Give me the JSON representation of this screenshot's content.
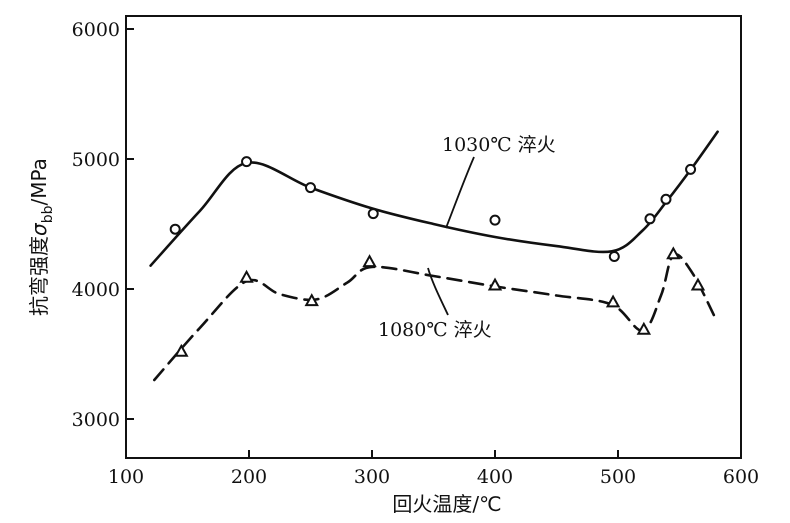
{
  "chart_data": {
    "type": "line",
    "xlabel": "回火温度/℃",
    "ylabel_main": "抗弯强度",
    "ylabel_symbol": "σ",
    "ylabel_sub": "bb",
    "ylabel_unit": "/MPa",
    "xlim": [
      100,
      600
    ],
    "ylim": [
      2700,
      6100
    ],
    "x_ticks": [
      "100",
      "200",
      "300",
      "400",
      "500",
      "600"
    ],
    "y_ticks": [
      "3000",
      "4000",
      "5000",
      "6000"
    ],
    "series": [
      {
        "name": "1030℃ 淬火",
        "line_style": "solid",
        "marker": "circle",
        "points": [
          {
            "x": 140,
            "y": 4460
          },
          {
            "x": 198,
            "y": 4980
          },
          {
            "x": 250,
            "y": 4780
          },
          {
            "x": 301,
            "y": 4580
          },
          {
            "x": 400,
            "y": 4530
          },
          {
            "x": 497,
            "y": 4250
          },
          {
            "x": 526,
            "y": 4540
          },
          {
            "x": 539,
            "y": 4690
          },
          {
            "x": 559,
            "y": 4920
          }
        ],
        "curve": [
          {
            "x": 120,
            "y": 4180
          },
          {
            "x": 160,
            "y": 4600
          },
          {
            "x": 198,
            "y": 4970
          },
          {
            "x": 250,
            "y": 4780
          },
          {
            "x": 300,
            "y": 4620
          },
          {
            "x": 350,
            "y": 4500
          },
          {
            "x": 400,
            "y": 4400
          },
          {
            "x": 450,
            "y": 4330
          },
          {
            "x": 495,
            "y": 4290
          },
          {
            "x": 520,
            "y": 4450
          },
          {
            "x": 540,
            "y": 4680
          },
          {
            "x": 560,
            "y": 4930
          },
          {
            "x": 581,
            "y": 5210
          }
        ]
      },
      {
        "name": "1080℃ 淬火",
        "line_style": "dashed",
        "marker": "triangle",
        "points": [
          {
            "x": 145,
            "y": 3520
          },
          {
            "x": 198,
            "y": 4090
          },
          {
            "x": 251,
            "y": 3910
          },
          {
            "x": 298,
            "y": 4210
          },
          {
            "x": 400,
            "y": 4030
          },
          {
            "x": 496,
            "y": 3900
          },
          {
            "x": 521,
            "y": 3690
          },
          {
            "x": 545,
            "y": 4270
          },
          {
            "x": 565,
            "y": 4030
          }
        ],
        "curve": [
          {
            "x": 123,
            "y": 3300
          },
          {
            "x": 160,
            "y": 3700
          },
          {
            "x": 198,
            "y": 4060
          },
          {
            "x": 225,
            "y": 3960
          },
          {
            "x": 255,
            "y": 3920
          },
          {
            "x": 280,
            "y": 4050
          },
          {
            "x": 300,
            "y": 4170
          },
          {
            "x": 350,
            "y": 4100
          },
          {
            "x": 400,
            "y": 4020
          },
          {
            "x": 450,
            "y": 3950
          },
          {
            "x": 495,
            "y": 3880
          },
          {
            "x": 520,
            "y": 3680
          },
          {
            "x": 535,
            "y": 3950
          },
          {
            "x": 545,
            "y": 4260
          },
          {
            "x": 560,
            "y": 4130
          },
          {
            "x": 580,
            "y": 3760
          }
        ]
      }
    ]
  }
}
